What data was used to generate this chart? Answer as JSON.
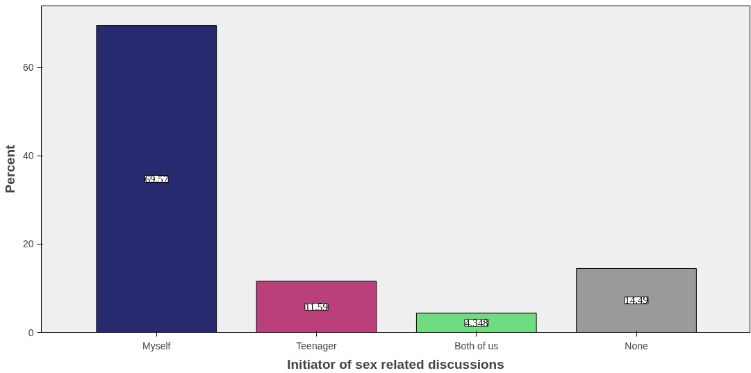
{
  "chart_data": {
    "type": "bar",
    "xlabel": "Initiator of sex related discussions",
    "ylabel": "Percent",
    "categories": [
      "Myself",
      "Teenager",
      "Both of us",
      "None"
    ],
    "values": [
      69.57,
      11.59,
      4.348,
      14.49
    ],
    "colors": [
      "#272a6e",
      "#b9407a",
      "#6fdc82",
      "#9a9a9a"
    ],
    "ylim": [
      0,
      74
    ],
    "yticks": [
      0,
      20,
      40,
      60
    ],
    "grid": false,
    "data_labels": true
  }
}
